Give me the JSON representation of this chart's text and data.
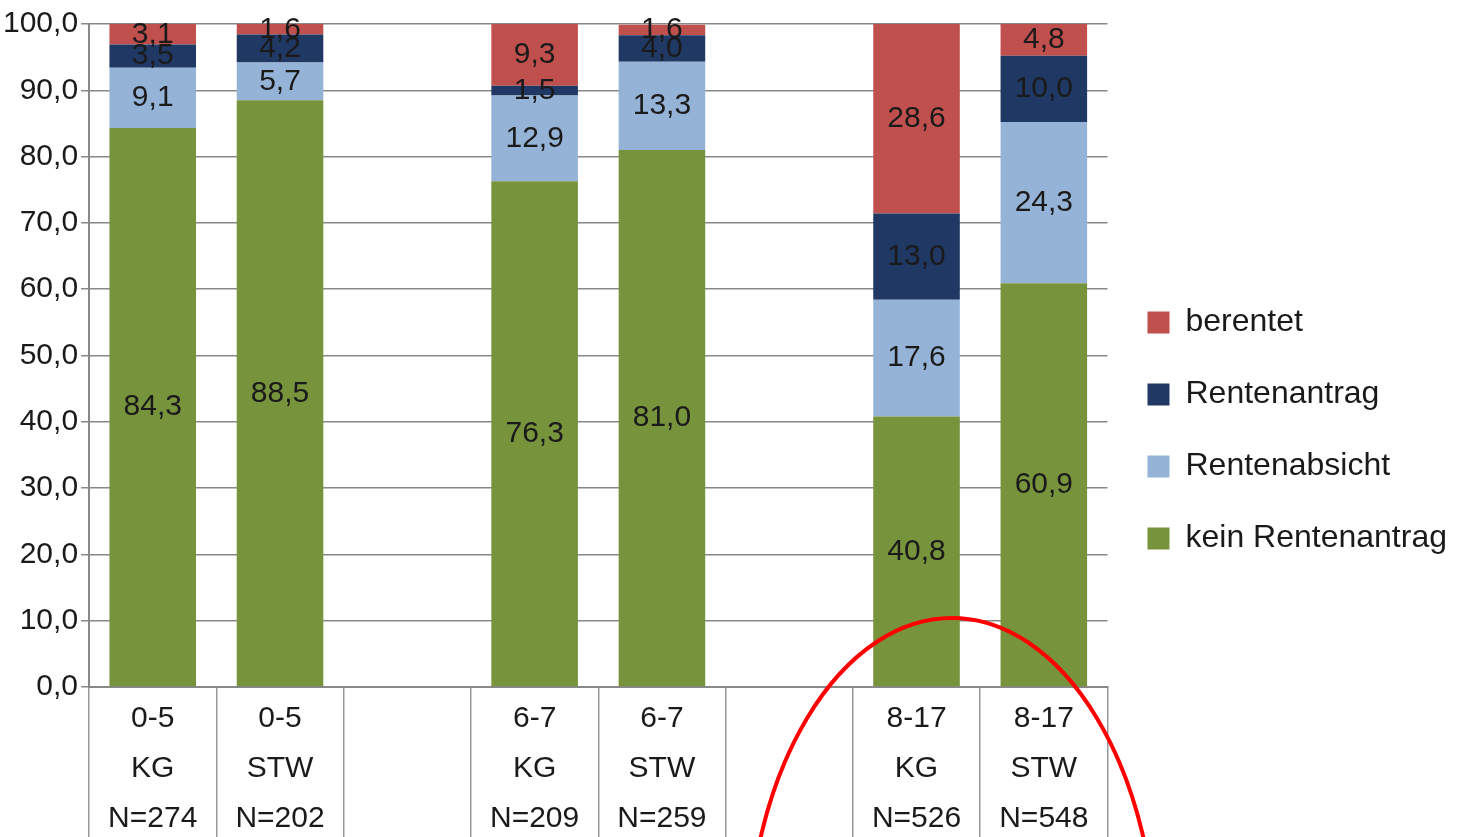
{
  "chart_data": {
    "type": "bar",
    "stacked": true,
    "categories": [
      "0-5\nKG\nN=274",
      "0-5\nSTW\nN=202",
      null,
      "6-7\nKG\nN=209",
      "6-7\nSTW\nN=259",
      null,
      "8-17\nKG\nN=526",
      "8-17\nSTW\nN=548"
    ],
    "series": [
      {
        "name": "kein Rentenantrag",
        "color": "#77933c",
        "values": [
          84.3,
          88.5,
          null,
          76.3,
          81.0,
          null,
          40.8,
          60.9
        ],
        "value_labels": [
          "84,3",
          "88,5",
          null,
          "76,3",
          "81,0",
          null,
          "40,8",
          "60,9"
        ]
      },
      {
        "name": "Rentenabsicht",
        "color": "#95b3d7",
        "values": [
          9.1,
          5.7,
          null,
          12.9,
          13.3,
          null,
          17.6,
          24.3
        ],
        "value_labels": [
          "9,1",
          "5,7",
          null,
          "12,9",
          "13,3",
          null,
          "17,6",
          "24,3"
        ]
      },
      {
        "name": "Rentenantrag",
        "color": "#1f3864",
        "values": [
          3.5,
          4.2,
          null,
          1.5,
          4.0,
          null,
          13.0,
          10.0
        ],
        "value_labels": [
          "3,5",
          "4,2",
          null,
          "1,5",
          "4,0",
          null,
          "13,0",
          "10,0"
        ]
      },
      {
        "name": "berentet",
        "color": "#c0504d",
        "values": [
          3.1,
          1.6,
          null,
          9.3,
          1.6,
          null,
          28.6,
          4.8
        ],
        "value_labels": [
          "3,1",
          "1,6",
          null,
          "9,3",
          "1,6",
          null,
          "28,6",
          "4,8"
        ]
      }
    ],
    "ylim": [
      0,
      100
    ],
    "yticks": [
      {
        "value": 0,
        "label": "0,0"
      },
      {
        "value": 10,
        "label": "10,0"
      },
      {
        "value": 20,
        "label": "20,0"
      },
      {
        "value": 30,
        "label": "30,0"
      },
      {
        "value": 40,
        "label": "40,0"
      },
      {
        "value": 50,
        "label": "50,0"
      },
      {
        "value": 60,
        "label": "60,0"
      },
      {
        "value": 70,
        "label": "70,0"
      },
      {
        "value": 80,
        "label": "80,0"
      },
      {
        "value": 90,
        "label": "90,0"
      },
      {
        "value": 100,
        "label": "100,0"
      }
    ],
    "grid": "y",
    "legend": "right"
  }
}
